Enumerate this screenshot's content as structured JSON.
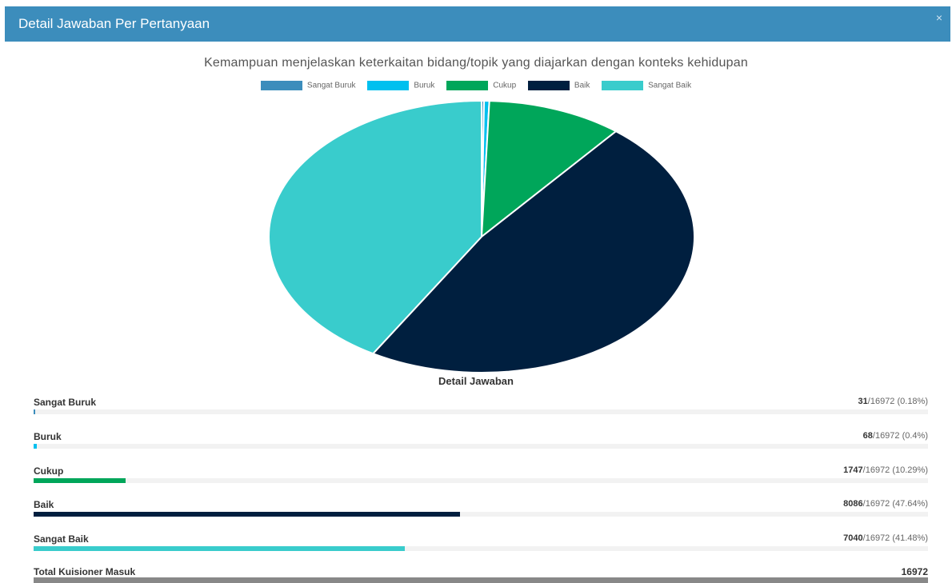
{
  "modal": {
    "title": "Detail Jawaban Per Pertanyaan",
    "close": "×"
  },
  "chart_data": {
    "type": "pie",
    "title": "Kemampuan menjelaskan keterkaitan bidang/topik yang diajarkan dengan konteks kehidupan",
    "legend_position": "top",
    "categories": [
      "Sangat Buruk",
      "Buruk",
      "Cukup",
      "Baik",
      "Sangat Baik"
    ],
    "values": [
      31,
      68,
      1747,
      8086,
      7040
    ],
    "colors": [
      "#3c8dbc",
      "#00c0ef",
      "#00a65a",
      "#001f3f",
      "#39cccc"
    ]
  },
  "detail": {
    "heading": "Detail Jawaban",
    "total_label": "Total Kuisioner Masuk",
    "total": "16972",
    "rows": [
      {
        "label": "Sangat Buruk",
        "count": "31",
        "suffix": "/16972 (0.18%)",
        "percent": 0.18
      },
      {
        "label": "Buruk",
        "count": "68",
        "suffix": "/16972 (0.4%)",
        "percent": 0.4
      },
      {
        "label": "Cukup",
        "count": "1747",
        "suffix": "/16972 (10.29%)",
        "percent": 10.29
      },
      {
        "label": "Baik",
        "count": "8086",
        "suffix": "/16972 (47.64%)",
        "percent": 47.64
      },
      {
        "label": "Sangat Baik",
        "count": "7040",
        "suffix": "/16972 (41.48%)",
        "percent": 41.48
      }
    ]
  }
}
